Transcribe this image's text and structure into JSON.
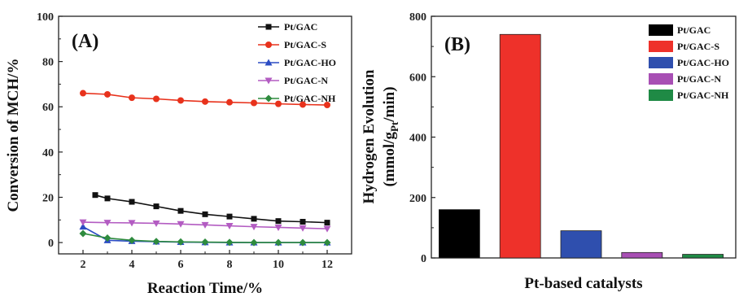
{
  "chart_data": [
    {
      "type": "line",
      "panel_label": "(A)",
      "xlabel": "Reaction Time/%",
      "ylabel": "Conversion of MCH/%",
      "xlim": [
        1,
        13
      ],
      "ylim": [
        -5,
        100
      ],
      "xticks": [
        "2",
        "4",
        "6",
        "8",
        "10",
        "12"
      ],
      "yticks": [
        "0",
        "20",
        "40",
        "60",
        "80",
        "100"
      ],
      "legend_position": "top-right",
      "series": [
        {
          "name": "Pt/GAC",
          "color": "#111111",
          "marker": "square",
          "x": [
            2.5,
            3,
            4,
            5,
            6,
            7,
            8,
            9,
            10,
            11,
            12
          ],
          "y": [
            21,
            19.5,
            18,
            16,
            14,
            12.5,
            11.5,
            10.5,
            9.5,
            9.2,
            8.8
          ]
        },
        {
          "name": "Pt/GAC-S",
          "color": "#e8321c",
          "marker": "circle",
          "x": [
            2,
            3,
            4,
            5,
            6,
            7,
            8,
            9,
            10,
            11,
            12
          ],
          "y": [
            66,
            65.5,
            64,
            63.5,
            62.8,
            62.3,
            62,
            61.7,
            61.3,
            61,
            60.8
          ]
        },
        {
          "name": "Pt/GAC-HO",
          "color": "#2b4cc4",
          "marker": "triangle-up",
          "x": [
            2,
            3,
            4,
            5,
            6,
            7,
            8,
            9,
            10,
            11,
            12
          ],
          "y": [
            7,
            1,
            0.6,
            0.4,
            0.2,
            0.1,
            0,
            0,
            0,
            0,
            0
          ]
        },
        {
          "name": "Pt/GAC-N",
          "color": "#b35cc2",
          "marker": "triangle-down",
          "x": [
            2,
            3,
            4,
            5,
            6,
            7,
            8,
            9,
            10,
            11,
            12
          ],
          "y": [
            9,
            8.8,
            8.7,
            8.5,
            8.2,
            7.8,
            7.4,
            7,
            6.7,
            6.4,
            6.1
          ]
        },
        {
          "name": "Pt/GAC-NH",
          "color": "#2e8b3e",
          "marker": "diamond",
          "x": [
            2,
            3,
            4,
            5,
            6,
            7,
            8,
            9,
            10,
            11,
            12
          ],
          "y": [
            4,
            2,
            1,
            0.5,
            0.3,
            0.2,
            0.1,
            0,
            0,
            0,
            0
          ]
        }
      ]
    },
    {
      "type": "bar",
      "panel_label": "(B)",
      "xlabel": "Pt-based catalysts",
      "ylabel_line1": "Hydrogen Evolution",
      "ylabel_line2_prefix": "(mmol/g",
      "ylabel_line2_sub": "Pt",
      "ylabel_line2_suffix": "/min)",
      "ylim": [
        0,
        800
      ],
      "yticks": [
        "0",
        "200",
        "400",
        "600",
        "800"
      ],
      "legend_position": "top-right",
      "categories": [
        "Pt/GAC",
        "Pt/GAC-S",
        "Pt/GAC-HO",
        "Pt/GAC-N",
        "Pt/GAC-NH"
      ],
      "values": [
        160,
        740,
        90,
        18,
        12
      ],
      "colors": [
        "#000000",
        "#ee312a",
        "#2f4fae",
        "#a84fb4",
        "#1f8a45"
      ]
    }
  ]
}
